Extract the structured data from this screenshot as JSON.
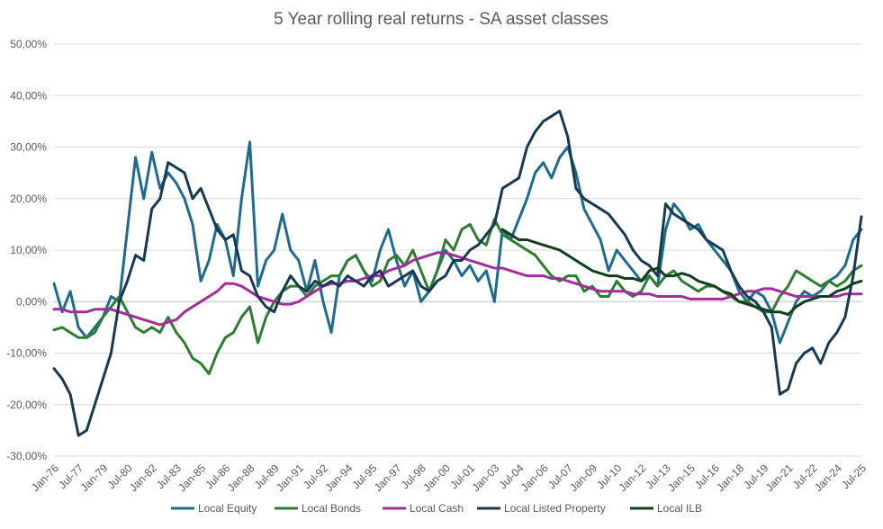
{
  "chart_data": {
    "type": "line",
    "title": "5 Year rolling real returns - SA asset classes",
    "xlabel": "",
    "ylabel": "",
    "ylim": [
      -30,
      50
    ],
    "ytick_step": 10,
    "y_tick_labels": [
      "50,00%",
      "40,00%",
      "30,00%",
      "20,00%",
      "10,00%",
      "0,00%",
      "-10,00%",
      "-20,00%",
      "-30,00%"
    ],
    "x_tick_labels": [
      "Jan-76",
      "Jul-77",
      "Jan-79",
      "Jul-80",
      "Jan-82",
      "Jul-83",
      "Jan-85",
      "Jul-86",
      "Jan-88",
      "Jul-89",
      "Jan-91",
      "Jul-92",
      "Jan-94",
      "Jul-95",
      "Jan-97",
      "Jul-98",
      "Jan-00",
      "Jul-01",
      "Jan-03",
      "Jul-04",
      "Jan-06",
      "Jul-07",
      "Jan-09",
      "Jul-10",
      "Jan-12",
      "Jul-13",
      "Jan-15",
      "Jul-16",
      "Jan-18",
      "Jul-19",
      "Jan-21",
      "Jul-22",
      "Jan-24",
      "Jul-25"
    ],
    "x_range": [
      1976.0,
      2025.5
    ],
    "legend_position": "bottom",
    "series": [
      {
        "name": "Local Equity",
        "color": "#1f6b8e",
        "x": [
          1976.0,
          1976.5,
          1977.0,
          1977.5,
          1978.0,
          1978.5,
          1979.0,
          1979.5,
          1980.0,
          1980.5,
          1981.0,
          1981.5,
          1982.0,
          1982.5,
          1983.0,
          1983.5,
          1984.0,
          1984.5,
          1985.0,
          1985.5,
          1986.0,
          1986.5,
          1987.0,
          1987.5,
          1988.0,
          1988.5,
          1989.0,
          1989.5,
          1990.0,
          1990.5,
          1991.0,
          1991.5,
          1992.0,
          1992.5,
          1993.0,
          1993.5,
          1994.0,
          1994.5,
          1995.0,
          1995.5,
          1996.0,
          1996.5,
          1997.0,
          1997.5,
          1998.0,
          1998.5,
          1999.0,
          1999.5,
          2000.0,
          2000.5,
          2001.0,
          2001.5,
          2002.0,
          2002.5,
          2003.0,
          2003.5,
          2004.0,
          2004.5,
          2005.0,
          2005.5,
          2006.0,
          2006.5,
          2007.0,
          2007.5,
          2008.0,
          2008.5,
          2009.0,
          2009.5,
          2010.0,
          2010.5,
          2011.0,
          2011.5,
          2012.0,
          2012.5,
          2013.0,
          2013.5,
          2014.0,
          2014.5,
          2015.0,
          2015.5,
          2016.0,
          2016.5,
          2017.0,
          2017.5,
          2018.0,
          2018.5,
          2019.0,
          2019.5,
          2020.0,
          2020.5,
          2021.0,
          2021.5,
          2022.0,
          2022.5,
          2023.0,
          2023.5,
          2024.0,
          2024.5,
          2025.0,
          2025.5
        ],
        "values": [
          3.5,
          -2,
          2,
          -5,
          -7,
          -5,
          -3,
          1,
          0,
          14,
          28,
          20,
          29,
          22,
          25,
          23,
          20,
          15,
          4,
          8,
          15,
          12,
          5,
          20,
          31,
          3,
          8,
          10,
          17,
          10,
          8,
          2,
          8,
          0,
          -6,
          5,
          8,
          9,
          6,
          4,
          10,
          14,
          8,
          3,
          6,
          0,
          2,
          6,
          10,
          8,
          5,
          7,
          4,
          6,
          0,
          14,
          12,
          16,
          20,
          25,
          27,
          24,
          28,
          30,
          25,
          18,
          15,
          12,
          6,
          10,
          8,
          6,
          4,
          5,
          3,
          14,
          19,
          17,
          14,
          15,
          12,
          10,
          8,
          6,
          2,
          0,
          2,
          1,
          -2,
          -8,
          -4,
          0,
          2,
          1,
          2,
          4,
          5,
          7,
          12,
          14
        ]
      },
      {
        "name": "Local Bonds",
        "color": "#2e7d32",
        "x": [
          1976.0,
          1976.5,
          1977.0,
          1977.5,
          1978.0,
          1978.5,
          1979.0,
          1979.5,
          1980.0,
          1980.5,
          1981.0,
          1981.5,
          1982.0,
          1982.5,
          1983.0,
          1983.5,
          1984.0,
          1984.5,
          1985.0,
          1985.5,
          1986.0,
          1986.5,
          1987.0,
          1987.5,
          1988.0,
          1988.5,
          1989.0,
          1989.5,
          1990.0,
          1990.5,
          1991.0,
          1991.5,
          1992.0,
          1992.5,
          1993.0,
          1993.5,
          1994.0,
          1994.5,
          1995.0,
          1995.5,
          1996.0,
          1996.5,
          1997.0,
          1997.5,
          1998.0,
          1998.5,
          1999.0,
          1999.5,
          2000.0,
          2000.5,
          2001.0,
          2001.5,
          2002.0,
          2002.5,
          2003.0,
          2003.5,
          2004.0,
          2004.5,
          2005.0,
          2005.5,
          2006.0,
          2006.5,
          2007.0,
          2007.5,
          2008.0,
          2008.5,
          2009.0,
          2009.5,
          2010.0,
          2010.5,
          2011.0,
          2011.5,
          2012.0,
          2012.5,
          2013.0,
          2013.5,
          2014.0,
          2014.5,
          2015.0,
          2015.5,
          2016.0,
          2016.5,
          2017.0,
          2017.5,
          2018.0,
          2018.5,
          2019.0,
          2019.5,
          2020.0,
          2020.5,
          2021.0,
          2021.5,
          2022.0,
          2022.5,
          2023.0,
          2023.5,
          2024.0,
          2024.5,
          2025.0,
          2025.5
        ],
        "values": [
          -5.5,
          -5,
          -6,
          -7,
          -7,
          -6,
          -3,
          -1,
          1,
          -2,
          -5,
          -6,
          -5,
          -6,
          -3,
          -6,
          -8,
          -11,
          -12,
          -14,
          -10,
          -7,
          -6,
          -3,
          -1,
          -8,
          -3,
          0,
          2,
          3,
          3,
          1,
          3,
          4,
          5,
          5,
          8,
          9,
          6,
          3,
          4,
          8,
          9,
          7,
          10,
          6,
          2,
          6,
          12,
          10,
          14,
          15,
          12,
          11,
          16,
          13,
          12,
          11,
          10,
          9,
          7,
          5,
          4,
          5,
          5,
          2,
          3,
          1,
          1,
          4,
          2,
          1,
          2,
          5,
          3,
          5,
          6,
          4,
          3,
          2,
          3,
          3,
          2,
          1,
          0,
          0,
          -1,
          -2,
          -2,
          1,
          3,
          6,
          5,
          4,
          3,
          4,
          3,
          4,
          6,
          7
        ]
      },
      {
        "name": "Local Cash",
        "color": "#a42d9b",
        "x": [
          1976.0,
          1976.5,
          1977.0,
          1977.5,
          1978.0,
          1978.5,
          1979.0,
          1979.5,
          1980.0,
          1980.5,
          1981.0,
          1981.5,
          1982.0,
          1982.5,
          1983.0,
          1983.5,
          1984.0,
          1984.5,
          1985.0,
          1985.5,
          1986.0,
          1986.5,
          1987.0,
          1987.5,
          1988.0,
          1988.5,
          1989.0,
          1989.5,
          1990.0,
          1990.5,
          1991.0,
          1991.5,
          1992.0,
          1992.5,
          1993.0,
          1993.5,
          1994.0,
          1994.5,
          1995.0,
          1995.5,
          1996.0,
          1996.5,
          1997.0,
          1997.5,
          1998.0,
          1998.5,
          1999.0,
          1999.5,
          2000.0,
          2000.5,
          2001.0,
          2001.5,
          2002.0,
          2002.5,
          2003.0,
          2003.5,
          2004.0,
          2004.5,
          2005.0,
          2005.5,
          2006.0,
          2006.5,
          2007.0,
          2007.5,
          2008.0,
          2008.5,
          2009.0,
          2009.5,
          2010.0,
          2010.5,
          2011.0,
          2011.5,
          2012.0,
          2012.5,
          2013.0,
          2013.5,
          2014.0,
          2014.5,
          2015.0,
          2015.5,
          2016.0,
          2016.5,
          2017.0,
          2017.5,
          2018.0,
          2018.5,
          2019.0,
          2019.5,
          2020.0,
          2020.5,
          2021.0,
          2021.5,
          2022.0,
          2022.5,
          2023.0,
          2023.5,
          2024.0,
          2024.5,
          2025.0,
          2025.5
        ],
        "values": [
          -1.5,
          -1.5,
          -2,
          -2,
          -2,
          -1.5,
          -1.5,
          -1.5,
          -2,
          -2.5,
          -3,
          -3.5,
          -4,
          -4.5,
          -4,
          -3.5,
          -2,
          -1,
          0,
          1,
          2,
          3.5,
          3.5,
          3,
          2,
          1,
          0.5,
          0,
          -0.5,
          -0.5,
          0,
          1,
          2,
          3,
          3.5,
          3.5,
          4,
          4,
          4.5,
          5,
          5,
          6,
          6.5,
          7,
          8,
          8.5,
          9,
          9.5,
          9.5,
          9,
          8.5,
          8,
          7.5,
          7,
          6.5,
          6.5,
          6,
          5.5,
          5,
          5,
          5,
          4.5,
          4.5,
          4,
          3.5,
          3,
          2.5,
          2,
          2,
          2,
          2,
          1.5,
          1.5,
          1.5,
          1,
          1,
          1,
          1,
          0.5,
          0.5,
          0.5,
          0.5,
          0.5,
          1,
          1.5,
          2,
          2,
          2.5,
          2.5,
          2,
          1.5,
          1,
          1,
          1,
          1,
          1,
          1,
          1.5,
          1.5,
          1.5
        ]
      },
      {
        "name": "Local Listed Property",
        "color": "#163a52",
        "x": [
          1976.0,
          1976.5,
          1977.0,
          1977.5,
          1978.0,
          1978.5,
          1979.0,
          1979.5,
          1980.0,
          1980.5,
          1981.0,
          1981.5,
          1982.0,
          1982.5,
          1983.0,
          1983.5,
          1984.0,
          1984.5,
          1985.0,
          1985.5,
          1986.0,
          1986.5,
          1987.0,
          1987.5,
          1988.0,
          1988.5,
          1989.0,
          1989.5,
          1990.0,
          1990.5,
          1991.0,
          1991.5,
          1992.0,
          1992.5,
          1993.0,
          1993.5,
          1994.0,
          1994.5,
          1995.0,
          1995.5,
          1996.0,
          1996.5,
          1997.0,
          1997.5,
          1998.0,
          1998.5,
          1999.0,
          1999.5,
          2000.0,
          2000.5,
          2001.0,
          2001.5,
          2002.0,
          2002.5,
          2003.0,
          2003.5,
          2004.0,
          2004.5,
          2005.0,
          2005.5,
          2006.0,
          2006.5,
          2007.0,
          2007.5,
          2008.0,
          2008.5,
          2009.0,
          2009.5,
          2010.0,
          2010.5,
          2011.0,
          2011.5,
          2012.0,
          2012.5,
          2013.0,
          2013.5,
          2014.0,
          2014.5,
          2015.0,
          2015.5,
          2016.0,
          2016.5,
          2017.0,
          2017.5,
          2018.0,
          2018.5,
          2019.0,
          2019.5,
          2020.0,
          2020.5,
          2021.0,
          2021.5,
          2022.0,
          2022.5,
          2023.0,
          2023.5,
          2024.0,
          2024.5,
          2025.0,
          2025.5
        ],
        "values": [
          -13,
          -15,
          -18,
          -26,
          -25,
          -20,
          -15,
          -10,
          0,
          4,
          9,
          8,
          18,
          20,
          27,
          26,
          25,
          20,
          22,
          18,
          14,
          12,
          13,
          6,
          5,
          1,
          -1,
          -2,
          2,
          5,
          3,
          2,
          4,
          3,
          4,
          3,
          5,
          4,
          3,
          5,
          6,
          3,
          4,
          5,
          6,
          3,
          2,
          4,
          5,
          8,
          8,
          10,
          11,
          13,
          15,
          22,
          23,
          24,
          30,
          33,
          35,
          36,
          37,
          32,
          22,
          20,
          19,
          18,
          17,
          15,
          13,
          10,
          8,
          7,
          5,
          19,
          17,
          16,
          15,
          14,
          12,
          11,
          10,
          6,
          3,
          1,
          0,
          -2,
          -5,
          -18,
          -17,
          -12,
          -10,
          -9,
          -12,
          -8,
          -6,
          -3,
          5,
          16.5
        ]
      },
      {
        "name": "Local ILB",
        "color": "#123f1c",
        "x": [
          2003.5,
          2004.0,
          2004.5,
          2005.0,
          2005.5,
          2006.0,
          2006.5,
          2007.0,
          2007.5,
          2008.0,
          2008.5,
          2009.0,
          2009.5,
          2010.0,
          2010.5,
          2011.0,
          2011.5,
          2012.0,
          2012.5,
          2013.0,
          2013.5,
          2014.0,
          2014.5,
          2015.0,
          2015.5,
          2016.0,
          2016.5,
          2017.0,
          2017.5,
          2018.0,
          2018.5,
          2019.0,
          2019.5,
          2020.0,
          2020.5,
          2021.0,
          2021.5,
          2022.0,
          2022.5,
          2023.0,
          2023.5,
          2024.0,
          2024.5,
          2025.0,
          2025.5
        ],
        "values": [
          14,
          13,
          12,
          12,
          11.5,
          11,
          10.5,
          10,
          9,
          8,
          7,
          6,
          5.5,
          5,
          5,
          4.5,
          4.5,
          4,
          6,
          6.5,
          5,
          5,
          5.5,
          5,
          4,
          3.5,
          3,
          2,
          1.5,
          0,
          -0.5,
          -1,
          -1.5,
          -2,
          -2,
          -2.5,
          -1,
          0,
          0.5,
          1,
          1,
          2,
          2.5,
          3.5,
          4
        ]
      }
    ]
  }
}
